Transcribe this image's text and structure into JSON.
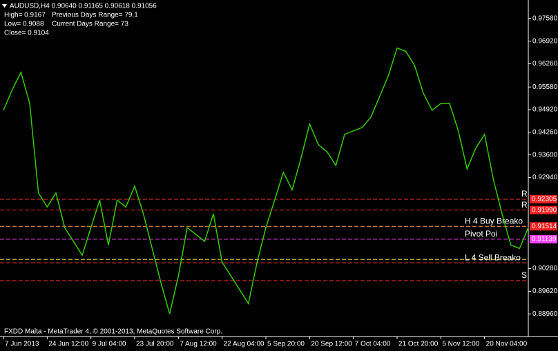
{
  "chart_data": {
    "type": "line",
    "title": "AUDUSD,H4  0.90640 0.91165 0.90618 0.91056",
    "info": [
      "High= 0.9167",
      "Previous Days Range= 79.1",
      "Low= 0.9088",
      "Current Days Range= 73",
      "Close= 0.9104"
    ],
    "footer": "FXDD Malta - MetaTrader 4, © 2001-2013, MetaQuotes Software Corp.",
    "categories": [
      "7 Jun 2013",
      null,
      null,
      null,
      null,
      "24 Jun 12:00",
      null,
      null,
      null,
      null,
      "9 Jul 04:00",
      null,
      null,
      null,
      null,
      "23 Jul 20:00",
      null,
      null,
      null,
      null,
      "7 Aug 12:00",
      null,
      null,
      null,
      null,
      "22 Aug 04:00",
      null,
      null,
      null,
      null,
      "5 Sep 20:00",
      null,
      null,
      null,
      null,
      "20 Sep 12:00",
      null,
      null,
      null,
      null,
      "7 Oct 04:00",
      null,
      null,
      null,
      null,
      "21 Oct 20:00",
      null,
      null,
      null,
      null,
      "5 Nov 12:00",
      null,
      null,
      null,
      null,
      "20 Nov 04:00",
      null,
      null,
      null,
      null,
      null
    ],
    "values": [
      0.949,
      0.955,
      0.9601,
      0.951,
      0.9249,
      0.9208,
      0.9249,
      0.9148,
      0.9108,
      0.9067,
      0.9148,
      0.9228,
      0.9097,
      0.9228,
      0.9208,
      0.9269,
      0.9188,
      0.9087,
      0.8987,
      0.8896,
      0.9007,
      0.9148,
      0.9128,
      0.9108,
      0.9188,
      0.9047,
      0.9007,
      0.8967,
      0.8926,
      0.9047,
      0.9148,
      0.9228,
      0.9309,
      0.9258,
      0.9349,
      0.945,
      0.939,
      0.9369,
      0.9329,
      0.942,
      0.943,
      0.944,
      0.947,
      0.953,
      0.9591,
      0.9672,
      0.9662,
      0.9621,
      0.954,
      0.949,
      0.951,
      0.951,
      0.943,
      0.9319,
      0.938,
      0.942,
      0.9289,
      0.9188,
      0.9097,
      0.9087,
      0.9148
    ],
    "color": "#33cc00",
    "ylim": [
      0.883,
      0.9812
    ],
    "yticks": [
      {
        "value": 0.9758,
        "label": "0.97580"
      },
      {
        "value": 0.9692,
        "label": "0.96920"
      },
      {
        "value": 0.9626,
        "label": "0.96260"
      },
      {
        "value": 0.9558,
        "label": "0.95580"
      },
      {
        "value": 0.9492,
        "label": "0.94920"
      },
      {
        "value": 0.9426,
        "label": "0.94260"
      },
      {
        "value": 0.936,
        "label": "0.93600"
      },
      {
        "value": 0.9294,
        "label": "0.92940"
      },
      {
        "value": 0.9028,
        "label": "0.90280"
      },
      {
        "value": 0.8962,
        "label": "0.89620"
      },
      {
        "value": 0.8896,
        "label": "0.88960"
      }
    ],
    "levels": [
      {
        "value": 0.92305,
        "label": "0.92305",
        "color": "#ff3030",
        "tag": "R"
      },
      {
        "value": 0.9199,
        "label": "0.91990",
        "color": "#ff3030",
        "tag": "R"
      },
      {
        "value": 0.91514,
        "label": "0.91514",
        "color": "#ffa040",
        "tag": "H 4 Buy Breako"
      },
      {
        "value": 0.91139,
        "label": "0.91139",
        "color": "#ff40ff",
        "tag": "Pivot Poi"
      },
      {
        "value": 0.9055,
        "color": "#ffff40"
      },
      {
        "value": 0.9045,
        "color": "#ff3030",
        "tag": "L 4 Sell Breako"
      },
      {
        "value": 0.8993,
        "color": "#ff3030",
        "tag": "S"
      }
    ]
  }
}
